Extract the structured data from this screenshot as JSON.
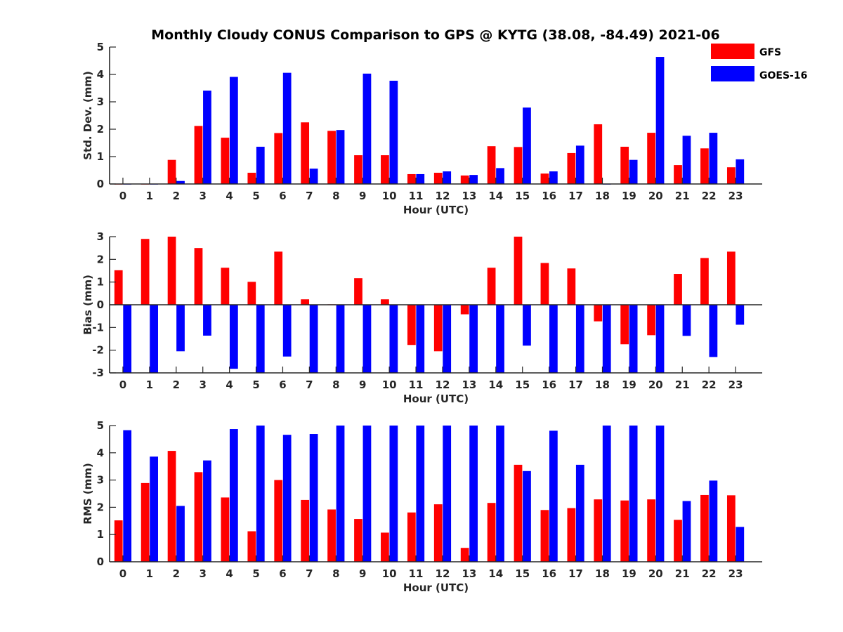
{
  "title": "Monthly Cloudy CONUS Comparison to GPS @ KYTG (38.08, -84.49) 2021-06",
  "colors": {
    "gfs": "#ff0000",
    "goes": "#0000ff",
    "axis": "#262626"
  },
  "legend": {
    "gfs_label": "GFS",
    "goes_label": "GOES-16",
    "placement": "top-right"
  },
  "chart_data": [
    {
      "type": "bar",
      "id": "std",
      "ylabel": "Std. Dev. (mm)",
      "xlabel": "Hour (UTC)",
      "ylim": [
        0,
        5
      ],
      "yticks": [
        0,
        1,
        2,
        3,
        4,
        5
      ],
      "categories": [
        "0",
        "1",
        "2",
        "3",
        "4",
        "5",
        "6",
        "7",
        "8",
        "9",
        "10",
        "11",
        "12",
        "13",
        "14",
        "15",
        "16",
        "17",
        "18",
        "19",
        "20",
        "21",
        "22",
        "23"
      ],
      "series": [
        {
          "name": "GFS",
          "values": [
            0,
            0,
            0.88,
            2.12,
            1.69,
            0.41,
            1.86,
            2.25,
            1.94,
            1.05,
            1.05,
            0.36,
            0.41,
            0.31,
            1.38,
            1.35,
            0.38,
            1.13,
            2.18,
            1.36,
            1.87,
            0.69,
            1.3,
            0.61
          ]
        },
        {
          "name": "GOES-16",
          "values": [
            0,
            0,
            0.11,
            3.41,
            3.91,
            1.36,
            4.06,
            0.56,
            1.97,
            4.03,
            3.77,
            0.36,
            0.46,
            0.33,
            0.58,
            2.79,
            0.46,
            1.4,
            0,
            0.88,
            4.64,
            1.76,
            1.87,
            0.9
          ]
        }
      ]
    },
    {
      "type": "bar",
      "id": "bias",
      "ylabel": "Bias (mm)",
      "xlabel": "Hour (UTC)",
      "ylim": [
        -3,
        3
      ],
      "yticks": [
        -3,
        -2,
        -1,
        0,
        1,
        2,
        3
      ],
      "categories": [
        "0",
        "1",
        "2",
        "3",
        "4",
        "5",
        "6",
        "7",
        "8",
        "9",
        "10",
        "11",
        "12",
        "13",
        "14",
        "15",
        "16",
        "17",
        "18",
        "19",
        "20",
        "21",
        "22",
        "23"
      ],
      "series": [
        {
          "name": "GFS",
          "values": [
            1.52,
            2.9,
            3.0,
            2.5,
            1.63,
            1.01,
            2.34,
            0.24,
            0.02,
            1.17,
            0.24,
            -1.77,
            -2.05,
            -0.42,
            1.63,
            3.0,
            1.84,
            1.6,
            -0.73,
            -1.74,
            -1.34,
            1.36,
            2.06,
            2.34
          ]
        },
        {
          "name": "GOES-16",
          "values": [
            -3.0,
            -3.0,
            -2.05,
            -1.36,
            -2.82,
            -3.0,
            -2.28,
            -3.0,
            -3.0,
            -3.0,
            -3.0,
            -3.0,
            -3.0,
            -3.0,
            -3.0,
            -1.8,
            -3.0,
            -3.0,
            -3.0,
            -3.0,
            -3.0,
            -1.37,
            -2.3,
            -0.88
          ]
        }
      ]
    },
    {
      "type": "bar",
      "id": "rms",
      "ylabel": "RMS (mm)",
      "xlabel": "Hour (UTC)",
      "ylim": [
        0,
        5
      ],
      "yticks": [
        0,
        1,
        2,
        3,
        4,
        5
      ],
      "categories": [
        "0",
        "1",
        "2",
        "3",
        "4",
        "5",
        "6",
        "7",
        "8",
        "9",
        "10",
        "11",
        "12",
        "13",
        "14",
        "15",
        "16",
        "17",
        "18",
        "19",
        "20",
        "21",
        "22",
        "23"
      ],
      "series": [
        {
          "name": "GFS",
          "values": [
            1.52,
            2.89,
            4.07,
            3.29,
            2.36,
            1.12,
            3.0,
            2.27,
            1.92,
            1.57,
            1.07,
            1.81,
            2.11,
            0.51,
            2.16,
            3.56,
            1.9,
            1.97,
            2.29,
            2.25,
            2.29,
            1.54,
            2.45,
            2.44
          ]
        },
        {
          "name": "GOES-16",
          "values": [
            4.83,
            3.86,
            2.05,
            3.72,
            4.87,
            5.0,
            4.66,
            4.69,
            5.0,
            5.0,
            5.0,
            5.0,
            5.0,
            5.0,
            5.0,
            3.33,
            4.81,
            3.56,
            5.0,
            5.0,
            5.0,
            2.23,
            2.98,
            1.28
          ]
        }
      ]
    }
  ]
}
